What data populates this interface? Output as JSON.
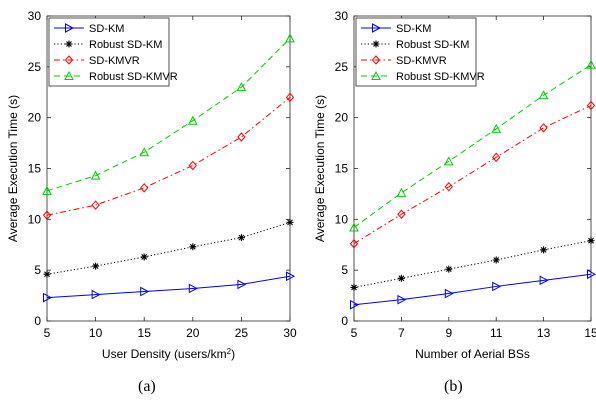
{
  "captions": [
    "(a)",
    "(b)"
  ],
  "chart_data": [
    {
      "type": "line",
      "xlabel": "User Density (users/km",
      "xlabel_sup": "2",
      "xlabel_end": ")",
      "ylabel": "Average Execution Time (s)",
      "x": [
        5,
        10,
        15,
        20,
        25,
        30
      ],
      "xticks": [
        "5",
        "10",
        "15",
        "20",
        "25",
        "30"
      ],
      "xlim": [
        5,
        30
      ],
      "ylim": [
        0,
        30
      ],
      "yticks": [
        "0",
        "5",
        "10",
        "15",
        "20",
        "25",
        "30"
      ],
      "legend_position": "top-left",
      "series": [
        {
          "name": "SD-KM",
          "color": "#0000ff",
          "marker": "triangle-right",
          "dash": "solid",
          "values": [
            2.3,
            2.6,
            2.9,
            3.2,
            3.6,
            4.4
          ]
        },
        {
          "name": "Robust SD-KM",
          "color": "#000000",
          "marker": "asterisk",
          "dash": "dotted",
          "values": [
            4.6,
            5.4,
            6.3,
            7.3,
            8.2,
            9.7
          ]
        },
        {
          "name": "SD-KMVR",
          "color": "#ff0000",
          "marker": "diamond",
          "dash": "dashdot",
          "values": [
            10.4,
            11.4,
            13.1,
            15.3,
            18.1,
            22.0
          ]
        },
        {
          "name": "Robust SD-KMVR",
          "color": "#00cc00",
          "marker": "triangle-up",
          "dash": "dashed",
          "values": [
            12.8,
            14.3,
            16.6,
            19.7,
            23.0,
            27.8
          ]
        }
      ]
    },
    {
      "type": "line",
      "xlabel": "Number of Aerial BSs",
      "ylabel": "Average Execution Time (s)",
      "x": [
        5,
        7,
        9,
        11,
        13,
        15
      ],
      "xticks": [
        "5",
        "7",
        "9",
        "11",
        "13",
        "15"
      ],
      "xlim": [
        5,
        15
      ],
      "ylim": [
        0,
        30
      ],
      "yticks": [
        "0",
        "5",
        "10",
        "15",
        "20",
        "25",
        "30"
      ],
      "legend_position": "top-left",
      "series": [
        {
          "name": "SD-KM",
          "color": "#0000ff",
          "marker": "triangle-right",
          "dash": "solid",
          "values": [
            1.6,
            2.1,
            2.7,
            3.4,
            4.0,
            4.6
          ]
        },
        {
          "name": "Robust SD-KM",
          "color": "#000000",
          "marker": "asterisk",
          "dash": "dotted",
          "values": [
            3.3,
            4.2,
            5.1,
            6.0,
            7.0,
            7.9
          ]
        },
        {
          "name": "SD-KMVR",
          "color": "#ff0000",
          "marker": "diamond",
          "dash": "dashdot",
          "values": [
            7.6,
            10.5,
            13.2,
            16.1,
            19.0,
            21.2
          ]
        },
        {
          "name": "Robust SD-KMVR",
          "color": "#00cc00",
          "marker": "triangle-up",
          "dash": "dashed",
          "values": [
            9.2,
            12.6,
            15.7,
            18.9,
            22.2,
            25.2
          ]
        }
      ]
    }
  ]
}
